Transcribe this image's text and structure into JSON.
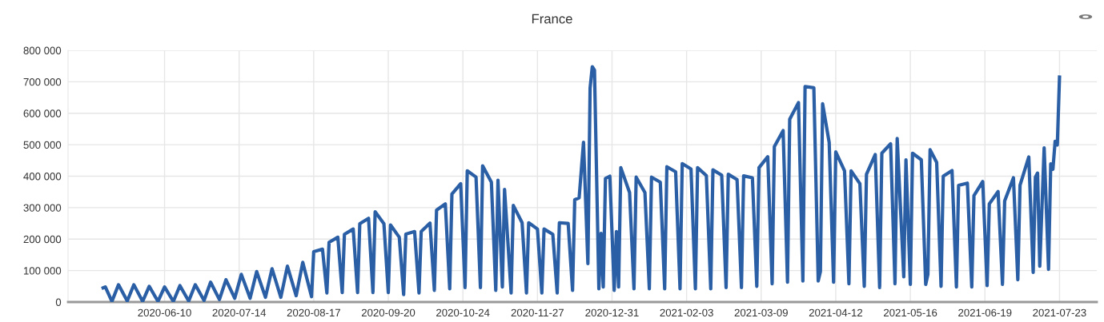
{
  "chart_data": {
    "type": "line",
    "title": "France",
    "x": [
      "2020-05-13",
      "2020-05-14",
      "2020-05-17",
      "2020-05-20",
      "2020-05-24",
      "2020-05-27",
      "2020-05-31",
      "2020-06-03",
      "2020-06-07",
      "2020-06-10",
      "2020-06-14",
      "2020-06-17",
      "2020-06-21",
      "2020-06-24",
      "2020-06-28",
      "2020-07-01",
      "2020-07-05",
      "2020-07-08",
      "2020-07-12",
      "2020-07-15",
      "2020-07-19",
      "2020-07-22",
      "2020-07-26",
      "2020-07-29",
      "2020-08-02",
      "2020-08-05",
      "2020-08-09",
      "2020-08-12",
      "2020-08-16",
      "2020-08-17",
      "2020-08-21",
      "2020-08-23",
      "2020-08-24",
      "2020-08-28",
      "2020-08-30",
      "2020-08-31",
      "2020-09-04",
      "2020-09-06",
      "2020-09-07",
      "2020-09-11",
      "2020-09-13",
      "2020-09-14",
      "2020-09-18",
      "2020-09-20",
      "2020-09-21",
      "2020-09-25",
      "2020-09-27",
      "2020-09-28",
      "2020-10-02",
      "2020-10-04",
      "2020-10-05",
      "2020-10-09",
      "2020-10-11",
      "2020-10-12",
      "2020-10-16",
      "2020-10-18",
      "2020-10-19",
      "2020-10-23",
      "2020-10-25",
      "2020-10-26",
      "2020-10-30",
      "2020-11-01",
      "2020-11-02",
      "2020-11-06",
      "2020-11-08",
      "2020-11-09",
      "2020-11-11",
      "2020-11-12",
      "2020-11-15",
      "2020-11-16",
      "2020-11-20",
      "2020-11-22",
      "2020-11-23",
      "2020-11-27",
      "2020-11-29",
      "2020-11-30",
      "2020-12-04",
      "2020-12-06",
      "2020-12-07",
      "2020-12-11",
      "2020-12-13",
      "2020-12-14",
      "2020-12-16",
      "2020-12-18",
      "2020-12-20",
      "2020-12-21",
      "2020-12-22",
      "2020-12-23",
      "2020-12-25",
      "2020-12-26",
      "2020-12-27",
      "2020-12-28",
      "2020-12-30",
      "2021-01-01",
      "2021-01-02",
      "2021-01-03",
      "2021-01-04",
      "2021-01-08",
      "2021-01-10",
      "2021-01-11",
      "2021-01-15",
      "2021-01-17",
      "2021-01-18",
      "2021-01-22",
      "2021-01-24",
      "2021-01-25",
      "2021-01-29",
      "2021-01-31",
      "2021-02-01",
      "2021-02-05",
      "2021-02-07",
      "2021-02-08",
      "2021-02-12",
      "2021-02-14",
      "2021-02-15",
      "2021-02-19",
      "2021-02-21",
      "2021-02-22",
      "2021-02-26",
      "2021-02-28",
      "2021-03-01",
      "2021-03-05",
      "2021-03-07",
      "2021-03-08",
      "2021-03-12",
      "2021-03-14",
      "2021-03-15",
      "2021-03-19",
      "2021-03-21",
      "2021-03-22",
      "2021-03-26",
      "2021-03-28",
      "2021-03-29",
      "2021-04-02",
      "2021-04-04",
      "2021-04-05",
      "2021-04-06",
      "2021-04-09",
      "2021-04-11",
      "2021-04-12",
      "2021-04-16",
      "2021-04-18",
      "2021-04-19",
      "2021-04-23",
      "2021-04-25",
      "2021-04-26",
      "2021-04-30",
      "2021-05-02",
      "2021-05-03",
      "2021-05-07",
      "2021-05-09",
      "2021-05-10",
      "2021-05-13",
      "2021-05-14",
      "2021-05-16",
      "2021-05-17",
      "2021-05-21",
      "2021-05-23",
      "2021-05-24",
      "2021-05-25",
      "2021-05-28",
      "2021-05-30",
      "2021-05-31",
      "2021-06-04",
      "2021-06-06",
      "2021-06-07",
      "2021-06-11",
      "2021-06-13",
      "2021-06-14",
      "2021-06-18",
      "2021-06-20",
      "2021-06-21",
      "2021-06-25",
      "2021-06-27",
      "2021-06-28",
      "2021-07-02",
      "2021-07-04",
      "2021-07-05",
      "2021-07-09",
      "2021-07-11",
      "2021-07-12",
      "2021-07-13",
      "2021-07-14",
      "2021-07-16",
      "2021-07-18",
      "2021-07-19",
      "2021-07-20",
      "2021-07-21",
      "2021-07-22",
      "2021-07-23"
    ],
    "series": [
      {
        "color": "#2b5fa5",
        "values": [
          45000,
          48000,
          2000,
          55000,
          3000,
          55000,
          2000,
          50000,
          2000,
          48000,
          2000,
          52000,
          3000,
          55000,
          5000,
          63000,
          8000,
          71000,
          12000,
          88000,
          12000,
          97000,
          15000,
          106000,
          15000,
          114000,
          20000,
          126000,
          17000,
          160000,
          168000,
          29000,
          190000,
          206000,
          30000,
          215000,
          232000,
          30000,
          249000,
          266000,
          30000,
          287000,
          249000,
          30000,
          245000,
          206000,
          24000,
          216000,
          224000,
          29000,
          224000,
          251000,
          37000,
          292000,
          312000,
          42000,
          343000,
          376000,
          46000,
          417000,
          397000,
          46000,
          433000,
          381000,
          37000,
          387000,
          48000,
          358000,
          29000,
          307000,
          252000,
          29000,
          252000,
          232000,
          29000,
          232000,
          215000,
          29000,
          252000,
          250000,
          37000,
          325000,
          331000,
          508000,
          122000,
          680000,
          748000,
          737000,
          42000,
          218000,
          48000,
          393000,
          400000,
          37000,
          224000,
          48000,
          427000,
          348000,
          42000,
          397000,
          348000,
          42000,
          397000,
          381000,
          42000,
          430000,
          414000,
          42000,
          440000,
          423000,
          42000,
          427000,
          402000,
          42000,
          420000,
          403000,
          46000,
          406000,
          389000,
          46000,
          401000,
          395000,
          50000,
          427000,
          462000,
          58000,
          494000,
          545000,
          63000,
          581000,
          634000,
          67000,
          685000,
          681000,
          67000,
          97000,
          630000,
          507000,
          63000,
          477000,
          417000,
          58000,
          417000,
          376000,
          50000,
          406000,
          469000,
          46000,
          473000,
          503000,
          58000,
          520000,
          80000,
          452000,
          56000,
          473000,
          452000,
          56000,
          88000,
          484000,
          444000,
          50000,
          400000,
          418000,
          48000,
          371000,
          378000,
          48000,
          338000,
          383000,
          52000,
          312000,
          351000,
          56000,
          321000,
          395000,
          71000,
          371000,
          461000,
          94000,
          397000,
          410000,
          114000,
          490000,
          104000,
          439000,
          422000,
          511000,
          499000,
          715000
        ]
      }
    ],
    "xlim": [
      "2020-04-27",
      "2021-08-09"
    ],
    "xticks": [
      {
        "value": "2020-06-10",
        "label": "2020-06-10"
      },
      {
        "value": "2020-07-14",
        "label": "2020-07-14"
      },
      {
        "value": "2020-08-17",
        "label": "2020-08-17"
      },
      {
        "value": "2020-09-20",
        "label": "2020-09-20"
      },
      {
        "value": "2020-10-24",
        "label": "2020-10-24"
      },
      {
        "value": "2020-11-27",
        "label": "2020-11-27"
      },
      {
        "value": "2020-12-31",
        "label": "2020-12-31"
      },
      {
        "value": "2021-02-03",
        "label": "2021-02-03"
      },
      {
        "value": "2021-03-09",
        "label": "2021-03-09"
      },
      {
        "value": "2021-04-12",
        "label": "2021-04-12"
      },
      {
        "value": "2021-05-16",
        "label": "2021-05-16"
      },
      {
        "value": "2021-06-19",
        "label": "2021-06-19"
      },
      {
        "value": "2021-07-23",
        "label": "2021-07-23"
      }
    ],
    "ylim": [
      0,
      800000
    ],
    "yticks": [
      0,
      {
        "value": 100000,
        "label": "100 000"
      },
      {
        "value": 200000,
        "label": "200 000"
      },
      {
        "value": 300000,
        "label": "300 000"
      },
      {
        "value": 400000,
        "label": "400 000"
      },
      {
        "value": 500000,
        "label": "500 000"
      },
      {
        "value": 600000,
        "label": "600 000"
      },
      {
        "value": 700000,
        "label": "700 000"
      },
      {
        "value": 800000,
        "label": "800 000"
      }
    ],
    "grid": true,
    "marker": "none",
    "line_style": "solid"
  }
}
